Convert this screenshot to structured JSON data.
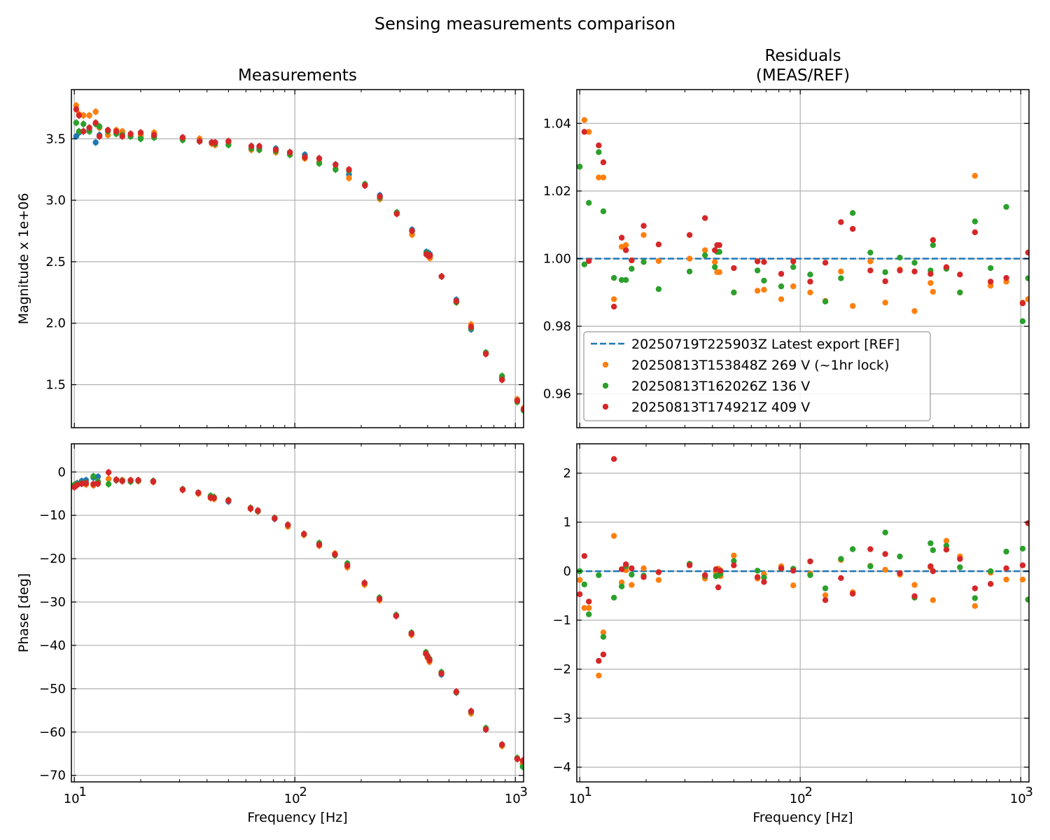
{
  "figure": {
    "suptitle": "Sensing measurements comparison"
  },
  "colors": {
    "ref": "#1f77b4",
    "s1": "#ff7f0e",
    "s2": "#2ca02c",
    "s3": "#d62728",
    "grid": "#b0b0b0"
  },
  "chart_data": [
    {
      "id": "mag",
      "type": "scatter",
      "title": "Measurements",
      "xlabel": "",
      "ylabel": "Magnitude x 1e+06",
      "xscale": "log",
      "xlim": [
        9.7,
        1090
      ],
      "ylim": [
        1.15,
        3.9
      ],
      "yticks": [
        1.5,
        2.0,
        2.5,
        3.0,
        3.5
      ],
      "ytick_labels": [
        "1.5",
        "2.0",
        "2.5",
        "3.0",
        "3.5"
      ],
      "xticks": [],
      "xtick_labels": [],
      "grid": true,
      "x": [
        10.2,
        10.5,
        11,
        11.7,
        12.5,
        13,
        14.2,
        15.5,
        16.5,
        18,
        20,
        23,
        31,
        37,
        42,
        43.5,
        50,
        63.5,
        69,
        82,
        95,
        111,
        129,
        153,
        176,
        208,
        243,
        290,
        340,
        395,
        405,
        410,
        463,
        540,
        630,
        735,
        870,
        1020,
        1090
      ],
      "series": [
        {
          "key": "ref",
          "values": [
            3.52,
            3.55,
            3.56,
            3.57,
            3.47,
            3.53,
            3.57,
            3.55,
            3.55,
            3.52,
            3.51,
            3.52,
            3.51,
            3.49,
            3.47,
            3.47,
            3.48,
            3.44,
            3.43,
            3.42,
            3.39,
            3.37,
            3.34,
            3.29,
            3.21,
            3.13,
            3.04,
            2.9,
            2.76,
            2.58,
            2.57,
            2.56,
            2.38,
            2.19,
            1.95,
            1.76,
            1.56,
            1.38,
            1.3
          ]
        },
        {
          "key": "s1",
          "values": [
            3.77,
            3.7,
            3.69,
            3.69,
            3.72,
            3.59,
            3.53,
            3.57,
            3.56,
            3.52,
            3.53,
            3.55,
            3.5,
            3.5,
            3.46,
            3.45,
            3.46,
            3.41,
            3.41,
            3.39,
            3.37,
            3.34,
            3.31,
            3.26,
            3.18,
            3.12,
            3.01,
            2.89,
            2.72,
            2.56,
            2.54,
            2.53,
            2.38,
            2.17,
            1.99,
            1.75,
            1.54,
            1.38,
            1.31
          ]
        },
        {
          "key": "s2",
          "values": [
            3.63,
            3.56,
            3.62,
            3.56,
            3.62,
            3.6,
            3.56,
            3.54,
            3.53,
            3.52,
            3.5,
            3.51,
            3.49,
            3.48,
            3.47,
            3.46,
            3.45,
            3.42,
            3.41,
            3.4,
            3.37,
            3.35,
            3.3,
            3.25,
            3.24,
            3.13,
            3.02,
            2.9,
            2.75,
            2.57,
            2.55,
            2.55,
            2.38,
            2.17,
            1.96,
            1.76,
            1.57,
            1.36,
            1.29
          ]
        },
        {
          "key": "s3",
          "values": [
            3.74,
            3.69,
            3.56,
            3.59,
            3.63,
            3.52,
            3.57,
            3.56,
            3.52,
            3.54,
            3.55,
            3.53,
            3.51,
            3.48,
            3.47,
            3.47,
            3.48,
            3.44,
            3.44,
            3.41,
            3.39,
            3.35,
            3.34,
            3.29,
            3.25,
            3.12,
            3.03,
            2.89,
            2.75,
            2.56,
            2.55,
            2.55,
            2.38,
            2.18,
            1.97,
            1.75,
            1.54,
            1.37,
            1.3
          ]
        }
      ]
    },
    {
      "id": "mag_res",
      "type": "scatter",
      "title": "Residuals\n(MEAS/REF)",
      "title_lines": [
        "Residuals",
        "(MEAS/REF)"
      ],
      "xlabel": "",
      "ylabel": "",
      "xscale": "log",
      "xlim": [
        9.7,
        1090
      ],
      "ylim": [
        0.95,
        1.05
      ],
      "yticks": [
        0.96,
        0.98,
        1.0,
        1.02,
        1.04
      ],
      "ytick_labels": [
        "0.96",
        "0.98",
        "1.00",
        "1.02",
        "1.04"
      ],
      "xticks": [],
      "xtick_labels": [],
      "grid": true,
      "reference_line": 1.0,
      "legend_position": "lower-left",
      "legend": [
        {
          "key": "ref",
          "label": "20250719T225903Z Latest export [REF]",
          "marker": "dashed-line"
        },
        {
          "key": "s1",
          "label": "20250813T153848Z 269 V (~1hr lock)",
          "marker": "dot"
        },
        {
          "key": "s2",
          "label": "20250813T162026Z 136 V",
          "marker": "dot"
        },
        {
          "key": "s3",
          "label": "20250813T174921Z 409 V",
          "marker": "dot"
        }
      ],
      "x": [
        10,
        10.5,
        11,
        12.2,
        12.8,
        14.3,
        15.5,
        16.2,
        17.2,
        19.5,
        22.8,
        31.5,
        37,
        41,
        42,
        43,
        50,
        64,
        68.5,
        82,
        93,
        111,
        130,
        153,
        173,
        208,
        243,
        283,
        330,
        390,
        400,
        460,
        530,
        620,
        730,
        860,
        1020,
        1080
      ],
      "series": [
        {
          "key": "s1",
          "values": [
            null,
            1.041,
            1.0375,
            1.024,
            1.024,
            0.988,
            1.0035,
            1.004,
            0.9995,
            1.007,
            0.9993,
            1.0,
            1.0025,
            0.999,
            0.996,
            0.996,
            0.99,
            0.9905,
            0.9908,
            0.988,
            0.9918,
            0.99,
            0.9875,
            0.9962,
            0.986,
            0.9992,
            0.987,
            0.9968,
            0.9845,
            0.9928,
            0.9902,
            0.9972,
            0.99,
            1.0245,
            0.992,
            0.9932,
            0.987,
            0.988
          ]
        },
        {
          "key": "s2",
          "values": [
            1.0272,
            0.9983,
            1.0165,
            1.0315,
            1.014,
            0.9943,
            0.9937,
            0.9937,
            0.997,
            0.999,
            0.991,
            0.9962,
            1.001,
            0.9975,
            1.002,
            1.002,
            0.99,
            0.9965,
            0.9935,
            0.9918,
            0.9975,
            0.9953,
            0.9873,
            0.9942,
            1.0135,
            1.0018,
            0.996,
            1.0003,
            0.9988,
            0.9965,
            1.004,
            0.997,
            0.99,
            1.011,
            0.9972,
            1.0153,
            0.9815,
            0.9942
          ]
        },
        {
          "key": "s3",
          "values": [
            null,
            1.0375,
            0.9993,
            1.0335,
            1.0285,
            0.9858,
            1.0062,
            1.0025,
            0.9995,
            1.0097,
            1.0042,
            1.007,
            1.012,
            1.0025,
            1.004,
            1.004,
            0.9972,
            0.9992,
            0.999,
            0.9955,
            0.9992,
            0.9932,
            0.9988,
            1.0108,
            1.0088,
            0.9965,
            0.9933,
            0.9965,
            0.9962,
            0.9955,
            1.0055,
            0.9975,
            0.9953,
            1.0078,
            0.9932,
            0.9943,
            0.9868,
            1.0018
          ]
        }
      ]
    },
    {
      "id": "phase",
      "type": "scatter",
      "title": "",
      "xlabel": "Frequency [Hz]",
      "ylabel": "Phase [deg]",
      "xscale": "log",
      "xlim": [
        9.7,
        1090
      ],
      "ylim": [
        -71.5,
        6.5
      ],
      "yticks": [
        -70,
        -60,
        -50,
        -40,
        -30,
        -20,
        -10,
        0
      ],
      "ytick_labels": [
        "−70",
        "−60",
        "−50",
        "−40",
        "−30",
        "−20",
        "−10",
        "0"
      ],
      "xticks": [
        10,
        100,
        1000
      ],
      "xtick_labels": [
        "10",
        "10",
        "10"
      ],
      "xtick_exponents": [
        "1",
        "2",
        "3"
      ],
      "grid": true,
      "x": [
        10,
        10.3,
        10.8,
        11.3,
        12.2,
        12.8,
        14.3,
        15.5,
        16.5,
        18,
        19.5,
        22.8,
        31,
        36.5,
        41.5,
        43,
        50,
        63,
        68,
        81,
        93,
        110,
        129,
        152,
        173,
        207,
        242,
        288,
        338,
        393,
        400,
        408,
        462,
        540,
        630,
        735,
        870,
        1020,
        1080
      ],
      "series": [
        {
          "key": "ref",
          "values": [
            -3.0,
            -2.6,
            -2.1,
            -1.9,
            -1.3,
            -1.1,
            -1.6,
            -1.9,
            -1.9,
            -2.0,
            -2.0,
            -2.1,
            -4.0,
            -4.8,
            -5.8,
            -6.0,
            -6.8,
            -8.5,
            -9.1,
            -10.8,
            -12.4,
            -14.5,
            -16.8,
            -19.1,
            -21.7,
            -25.8,
            -29.4,
            -33.1,
            -37.3,
            -42.0,
            -42.7,
            -43.3,
            -46.7,
            -50.9,
            -55.2,
            -59.4,
            -63.1,
            -66.2,
            -67.4
          ]
        },
        {
          "key": "s1",
          "values": [
            -3.2,
            -2.8,
            -2.7,
            -2.9,
            -3.1,
            -2.2,
            -1.6,
            -1.8,
            -1.9,
            -2.2,
            -2.1,
            -2.3,
            -4.1,
            -5.0,
            -6.0,
            -6.2,
            -6.5,
            -8.5,
            -9.1,
            -10.7,
            -12.6,
            -14.5,
            -17.0,
            -18.8,
            -22.0,
            -26.0,
            -29.6,
            -33.2,
            -37.6,
            -42.0,
            -42.9,
            -43.8,
            -46.3,
            -50.8,
            -55.7,
            -59.3,
            -63.2,
            -66.2,
            -67.2
          ]
        },
        {
          "key": "s2",
          "values": [
            -3.0,
            -2.8,
            -2.6,
            -2.5,
            -1.0,
            -2.2,
            -2.8,
            -1.9,
            -2.0,
            -2.2,
            -2.0,
            -2.1,
            -4.0,
            -4.8,
            -5.5,
            -5.8,
            -6.5,
            -8.3,
            -9.0,
            -10.6,
            -12.2,
            -14.3,
            -16.4,
            -19.2,
            -21.1,
            -25.6,
            -29.0,
            -33.0,
            -37.1,
            -41.6,
            -42.4,
            -43.1,
            -46.2,
            -50.8,
            -55.3,
            -59.1,
            -62.9,
            -66.0,
            -68.0
          ]
        },
        {
          "key": "s3",
          "values": [
            -3.5,
            -3.0,
            -2.7,
            -2.6,
            -2.8,
            -2.7,
            -0.1,
            -1.8,
            -2.1,
            -1.9,
            -1.9,
            -2.2,
            -4.1,
            -4.8,
            -5.9,
            -6.0,
            -6.6,
            -8.4,
            -8.9,
            -10.7,
            -12.2,
            -14.3,
            -16.8,
            -19.0,
            -21.6,
            -25.6,
            -29.3,
            -33.2,
            -37.3,
            -41.9,
            -42.6,
            -43.4,
            -46.5,
            -50.7,
            -55.2,
            -59.4,
            -62.9,
            -66.2,
            -66.6
          ]
        }
      ]
    },
    {
      "id": "phase_res",
      "type": "scatter",
      "title": "",
      "xlabel": "Frequency [Hz]",
      "ylabel": "",
      "xscale": "log",
      "xlim": [
        9.7,
        1090
      ],
      "ylim": [
        -4.3,
        2.6
      ],
      "yticks": [
        -4,
        -3,
        -2,
        -1,
        0,
        1,
        2
      ],
      "ytick_labels": [
        "−4",
        "−3",
        "−2",
        "−1",
        "0",
        "1",
        "2"
      ],
      "xticks": [
        10,
        100,
        1000
      ],
      "xtick_labels": [
        "10",
        "10",
        "10"
      ],
      "xtick_exponents": [
        "1",
        "2",
        "3"
      ],
      "grid": true,
      "reference_line": 0,
      "x": [
        10,
        10.5,
        11,
        12.2,
        12.8,
        14.3,
        15.5,
        16.2,
        17.2,
        19.5,
        22.8,
        31.5,
        37,
        41.5,
        42.5,
        43.5,
        50,
        64,
        68.5,
        82,
        93,
        111,
        130,
        153,
        173,
        208,
        243,
        283,
        330,
        390,
        400,
        460,
        530,
        620,
        730,
        860,
        1020,
        1080
      ],
      "series": [
        {
          "key": "s1",
          "values": [
            -0.18,
            -0.75,
            -0.75,
            -2.13,
            -1.25,
            0.72,
            -0.23,
            0.02,
            -0.28,
            0.06,
            -0.18,
            0.15,
            -0.15,
            -0.03,
            0.05,
            -0.1,
            0.32,
            -0.15,
            -0.06,
            0.1,
            -0.29,
            -0.05,
            -0.49,
            0.23,
            -0.43,
            0.11,
            0.03,
            -0.07,
            -0.28,
            0.08,
            -0.59,
            0.62,
            0.3,
            -0.71,
            -0.03,
            -0.17,
            -0.17,
            -0.58
          ]
        },
        {
          "key": "s2",
          "values": [
            0.0,
            -0.27,
            -0.88,
            -0.08,
            -1.34,
            -0.54,
            -0.31,
            0.1,
            -0.07,
            -0.09,
            -0.02,
            0.15,
            -0.1,
            -0.1,
            -0.08,
            -0.05,
            0.21,
            0.01,
            -0.13,
            0.05,
            0.05,
            -0.08,
            -0.35,
            0.25,
            0.45,
            0.1,
            0.79,
            0.3,
            -0.54,
            0.57,
            0.43,
            0.52,
            0.08,
            -0.55,
            0.0,
            0.4,
            0.46,
            -0.58
          ]
        },
        {
          "key": "s3",
          "values": [
            -0.47,
            0.31,
            -0.62,
            -1.83,
            -1.7,
            2.29,
            0.04,
            0.14,
            0.06,
            -0.12,
            -0.02,
            0.12,
            -0.08,
            0.04,
            -0.33,
            0.01,
            0.12,
            -0.12,
            -0.22,
            0.06,
            0.01,
            0.2,
            -0.59,
            -0.14,
            -0.46,
            0.45,
            0.35,
            -0.04,
            -0.51,
            0.1,
            0.0,
            0.44,
            0.25,
            -0.35,
            -0.26,
            0.06,
            0.12,
            0.98
          ]
        }
      ]
    }
  ]
}
